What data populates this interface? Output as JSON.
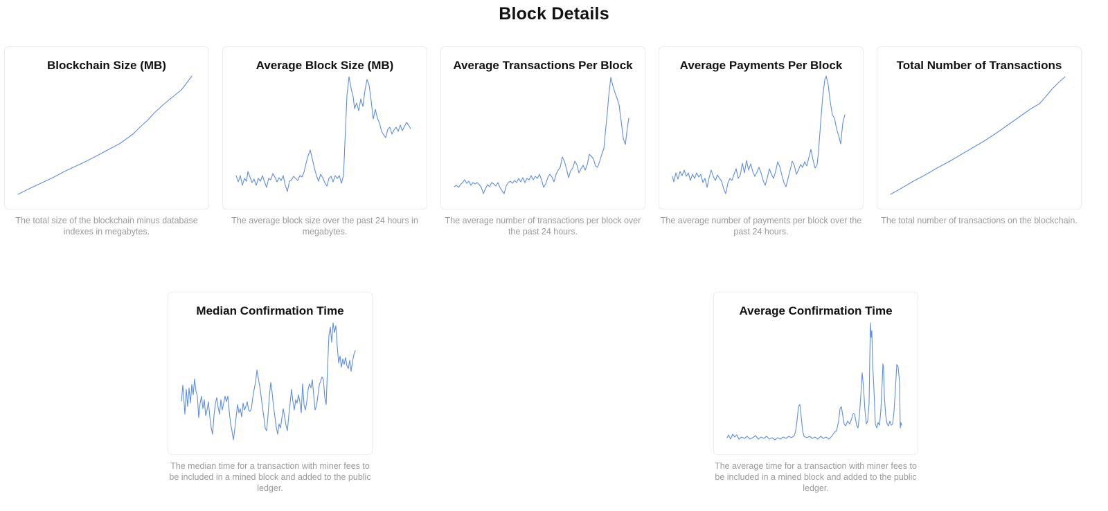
{
  "page": {
    "title": "Block Details"
  },
  "theme": {
    "line_color": "#5b8ee6",
    "card_border": "#ececec",
    "description_color": "#9a9a9a"
  },
  "charts": [
    {
      "title": "Blockchain Size (MB)",
      "description": "The total size of the blockchain minus database indexes in megabytes."
    },
    {
      "title": "Average Block Size (MB)",
      "description": "The average block size over the past 24 hours in megabytes."
    },
    {
      "title": "Average Transactions Per Block",
      "description": "The average number of transactions per block over the past 24 hours."
    },
    {
      "title": "Average Payments Per Block",
      "description": "The average number of payments per block over the past 24 hours."
    },
    {
      "title": "Total Number of Transactions",
      "description": "The total number of transactions on the blockchain."
    },
    {
      "title": "Median Confirmation Time",
      "description": "The median time for a transaction with miner fees to be included in a mined block and added to the public ledger."
    },
    {
      "title": "Average Confirmation Time",
      "description": "The average time for a transaction with miner fees to be included in a mined block and added to the public ledger."
    }
  ]
}
